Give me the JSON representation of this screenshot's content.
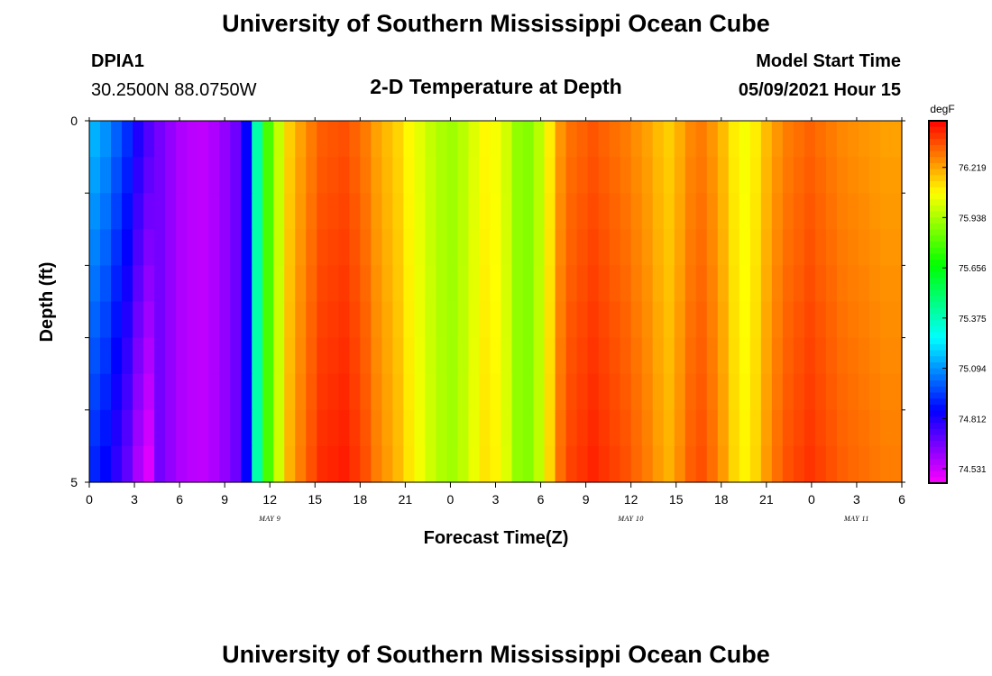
{
  "header": {
    "title_top": "University of Southern Mississippi Ocean Cube",
    "title_bottom": "University of Southern Mississippi Ocean Cube",
    "station": "DPIA1",
    "location": "30.2500N  88.0750W",
    "model_label": "Model Start Time",
    "model_start": "05/09/2021 Hour 15"
  },
  "chart_data": {
    "type": "heatmap",
    "title": "2-D Temperature at Depth",
    "xlabel": "Forecast Time(Z)",
    "ylabel": "Depth (ft)",
    "x_tick_labels": [
      "0",
      "3",
      "6",
      "9",
      "12",
      "15",
      "18",
      "21",
      "0",
      "3",
      "6",
      "9",
      "12",
      "15",
      "18",
      "21",
      "0",
      "3",
      "6"
    ],
    "date_labels": [
      {
        "label": "MAY 9",
        "tick_index": 4
      },
      {
        "label": "MAY 10",
        "tick_index": 12
      },
      {
        "label": "MAY 11",
        "tick_index": 17
      }
    ],
    "y_tick_labels": [
      "0",
      "5"
    ],
    "ylim": [
      0,
      5
    ],
    "depths_ft": [
      0.25,
      0.75,
      1.25,
      1.75,
      2.25,
      2.75,
      3.25,
      3.75,
      4.25,
      4.75
    ],
    "x_hours": [
      0,
      1,
      2,
      3,
      4,
      5,
      6,
      7,
      8,
      9,
      10,
      11,
      12,
      13,
      14,
      15,
      16,
      17,
      18,
      19,
      20,
      21,
      22,
      23,
      24,
      25,
      26,
      27,
      28,
      29,
      30,
      31,
      32,
      33,
      34,
      35,
      36,
      37,
      38,
      39,
      40,
      41,
      42,
      43,
      44,
      45,
      46,
      47,
      48,
      49,
      50,
      51,
      52,
      53,
      54
    ],
    "surface_temp_degF": [
      75.15,
      75.1,
      75.02,
      74.94,
      74.82,
      74.74,
      74.67,
      74.62,
      74.58,
      74.56,
      74.55,
      74.58,
      74.62,
      74.68,
      74.85,
      75.4,
      75.78,
      75.98,
      76.15,
      76.22,
      76.28,
      76.33,
      76.34,
      76.35,
      76.32,
      76.28,
      76.22,
      76.18,
      76.14,
      76.08,
      76.03,
      75.98,
      75.94,
      75.92,
      75.96,
      76.02,
      76.08,
      76.06,
      76.0,
      75.9,
      75.88,
      75.96,
      76.1,
      76.24,
      76.3,
      76.32,
      76.34,
      76.32,
      76.3,
      76.28,
      76.25,
      76.22,
      76.18,
      76.15,
      76.2,
      76.26,
      76.28,
      76.24,
      76.18,
      76.1,
      76.06,
      76.1,
      76.18,
      76.24,
      76.28,
      76.3,
      76.32,
      76.3,
      76.28,
      76.26,
      76.25,
      76.24,
      76.23,
      76.22,
      76.22
    ],
    "colorbar": {
      "unit": "degF",
      "ticks": [
        "76.219",
        "75.938",
        "75.656",
        "75.375",
        "75.094",
        "74.812",
        "74.531"
      ],
      "range": [
        74.45,
        76.48
      ]
    }
  }
}
